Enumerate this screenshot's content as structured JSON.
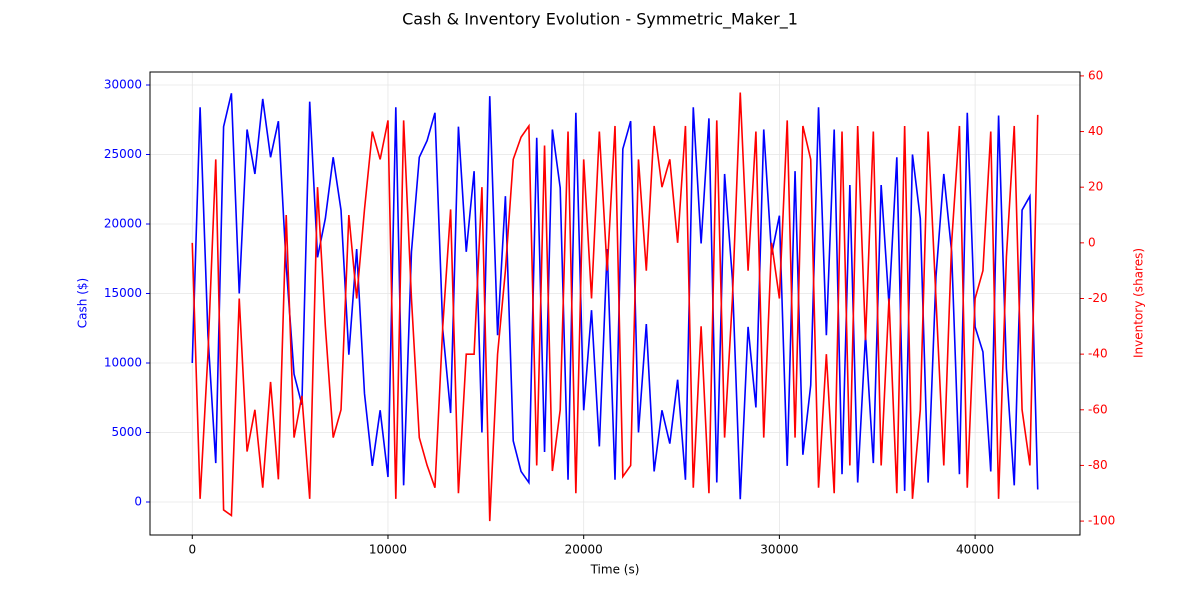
{
  "chart_data": {
    "type": "line",
    "title": "Cash & Inventory Evolution - Symmetric_Maker_1",
    "xlabel": "Time (s)",
    "ylabel": "Cash ($)",
    "y2label": "Inventory (shares)",
    "x": [
      0,
      400,
      800,
      1200,
      1600,
      2000,
      2400,
      2800,
      3200,
      3600,
      4000,
      4400,
      4800,
      5200,
      5600,
      6000,
      6400,
      6800,
      7200,
      7600,
      8000,
      8400,
      8800,
      9200,
      9600,
      10000,
      10400,
      10800,
      11200,
      11600,
      12000,
      12400,
      12800,
      13200,
      13600,
      14000,
      14400,
      14800,
      15200,
      15600,
      16000,
      16400,
      16800,
      17200,
      17600,
      18000,
      18400,
      18800,
      19200,
      19600,
      20000,
      20400,
      20800,
      21200,
      21600,
      22000,
      22400,
      22800,
      23200,
      23600,
      24000,
      24400,
      24800,
      25200,
      25600,
      26000,
      26400,
      26800,
      27200,
      27600,
      28000,
      28400,
      28800,
      29200,
      29600,
      30000,
      30400,
      30800,
      31200,
      31600,
      32000,
      32400,
      32800,
      33200,
      33600,
      34000,
      34400,
      34800,
      35200,
      35600,
      36000,
      36400,
      36800,
      37200,
      37600,
      38000,
      38400,
      38800,
      39200,
      39600,
      40000,
      40400,
      40800,
      41200,
      41600,
      42000,
      42400,
      42800,
      43200
    ],
    "series": [
      {
        "name": "Cash ($)",
        "color": "#0000ff",
        "axis": "y",
        "values": [
          10000,
          28400,
          12000,
          2800,
          27000,
          29400,
          15000,
          26800,
          23600,
          29000,
          24800,
          27400,
          17000,
          9200,
          7000,
          28800,
          17600,
          20400,
          24800,
          21000,
          10600,
          18200,
          7800,
          2600,
          6600,
          1800,
          28400,
          1200,
          18000,
          24800,
          26000,
          28000,
          12400,
          6400,
          27000,
          18000,
          23800,
          5000,
          29200,
          12000,
          22000,
          4400,
          2200,
          1400,
          26200,
          3600,
          26800,
          22600,
          1600,
          28000,
          6600,
          13800,
          4000,
          18200,
          1600,
          25400,
          27400,
          5000,
          12800,
          2200,
          6600,
          4200,
          8800,
          1600,
          28400,
          18600,
          27600,
          1400,
          23600,
          16000,
          200,
          12600,
          6800,
          26800,
          17800,
          20600,
          2600,
          23800,
          3400,
          8400,
          28400,
          12000,
          26800,
          2000,
          22800,
          1400,
          12000,
          2800,
          22800,
          14200,
          24800,
          800,
          25000,
          20400,
          1400,
          16200,
          23600,
          18000,
          2000,
          28000,
          12600,
          10800,
          2200,
          27800,
          9600,
          1200,
          21000,
          22000,
          900
        ]
      },
      {
        "name": "Inventory (shares)",
        "color": "#ff0000",
        "axis": "y2",
        "values": [
          0,
          -92,
          -40,
          30,
          -96,
          -98,
          -20,
          -75,
          -60,
          -88,
          -50,
          -85,
          10,
          -70,
          -55,
          -92,
          20,
          -30,
          -70,
          -60,
          10,
          -20,
          12,
          40,
          30,
          44,
          -92,
          44,
          -20,
          -70,
          -80,
          -88,
          -30,
          12,
          -90,
          -40,
          -40,
          20,
          -100,
          -40,
          -10,
          30,
          38,
          42,
          -80,
          35,
          -82,
          -60,
          40,
          -90,
          30,
          -20,
          40,
          -10,
          42,
          -84,
          -80,
          30,
          -10,
          42,
          20,
          30,
          0,
          42,
          -88,
          -30,
          -90,
          44,
          -70,
          -20,
          54,
          -10,
          40,
          -70,
          0,
          -20,
          44,
          -70,
          42,
          30,
          -88,
          -40,
          -90,
          40,
          -80,
          42,
          -35,
          40,
          -80,
          -20,
          -90,
          42,
          -92,
          -60,
          40,
          -20,
          -80,
          0,
          42,
          -88,
          -20,
          -10,
          40,
          -92,
          -5,
          42,
          -60,
          -80,
          46
        ]
      }
    ],
    "xlim": [
      -2160,
      45360
    ],
    "xticks": [
      0,
      10000,
      20000,
      30000,
      40000
    ],
    "ylim": [
      -2374,
      30935
    ],
    "yticks": [
      0,
      5000,
      10000,
      15000,
      20000,
      25000,
      30000
    ],
    "y2lim": [
      -105,
      61.4
    ],
    "y2ticks": [
      -100,
      -80,
      -60,
      -40,
      -20,
      0,
      20,
      40,
      60
    ],
    "grid": true
  }
}
